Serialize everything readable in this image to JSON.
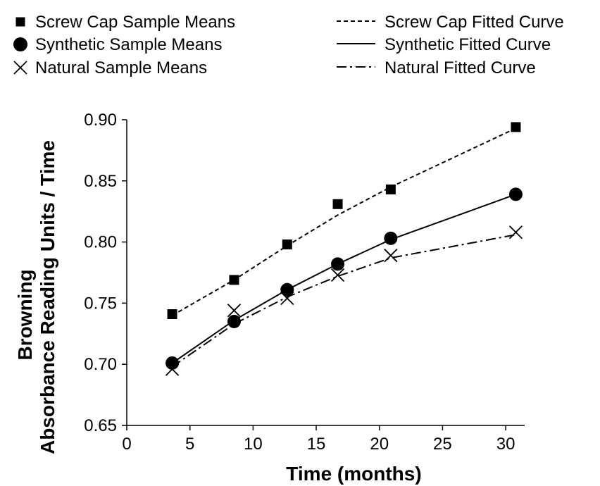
{
  "chart_data": {
    "type": "line",
    "title": "",
    "xlabel": "Time (months)",
    "ylabel_lines": [
      "Browning",
      "Absorbance Reading Units / Time"
    ],
    "xlim": [
      0,
      31.5
    ],
    "ylim": [
      0.65,
      0.9
    ],
    "x_ticks": [
      0,
      5,
      10,
      15,
      20,
      25,
      30
    ],
    "x_tick_labels": [
      "0",
      "5",
      "10",
      "15",
      "20",
      "25",
      "30"
    ],
    "y_ticks": [
      0.65,
      0.7,
      0.75,
      0.8,
      0.85,
      0.9
    ],
    "y_tick_labels": [
      "0.65",
      "0.70",
      "0.75",
      "0.80",
      "0.85",
      "0.90"
    ],
    "grid": false,
    "legend_position": "top",
    "legend": {
      "markers": [
        {
          "label": "Screw Cap Sample Means",
          "symbol": "square"
        },
        {
          "label": "Synthetic Sample Means",
          "symbol": "circle"
        },
        {
          "label": "Natural Sample Means",
          "symbol": "x"
        }
      ],
      "lines": [
        {
          "label": "Screw Cap Fitted Curve",
          "dash": "dashed"
        },
        {
          "label": "Synthetic Fitted Curve",
          "dash": "solid"
        },
        {
          "label": "Natural Fitted Curve",
          "dash": "dashdot"
        }
      ]
    },
    "series": [
      {
        "symbol": "square",
        "dash": "dashed",
        "color": "#000000",
        "points": [
          [
            3.6,
            0.741
          ],
          [
            8.5,
            0.769
          ],
          [
            12.7,
            0.798
          ],
          [
            16.7,
            0.831
          ],
          [
            20.9,
            0.843
          ],
          [
            30.8,
            0.894
          ]
        ],
        "fit": [
          [
            3.6,
            0.74
          ],
          [
            8.5,
            0.769
          ],
          [
            12.7,
            0.797
          ],
          [
            16.7,
            0.822
          ],
          [
            20.9,
            0.845
          ],
          [
            30.8,
            0.893
          ]
        ]
      },
      {
        "symbol": "circle",
        "dash": "solid",
        "color": "#000000",
        "points": [
          [
            3.6,
            0.701
          ],
          [
            8.5,
            0.735
          ],
          [
            12.7,
            0.761
          ],
          [
            16.7,
            0.782
          ],
          [
            20.9,
            0.803
          ],
          [
            30.8,
            0.839
          ]
        ],
        "fit": [
          [
            3.6,
            0.701
          ],
          [
            8.5,
            0.736
          ],
          [
            12.7,
            0.761
          ],
          [
            16.7,
            0.782
          ],
          [
            20.9,
            0.802
          ],
          [
            30.8,
            0.839
          ]
        ]
      },
      {
        "symbol": "x",
        "dash": "dashdot",
        "color": "#000000",
        "points": [
          [
            3.6,
            0.696
          ],
          [
            8.5,
            0.744
          ],
          [
            12.7,
            0.754
          ],
          [
            16.7,
            0.773
          ],
          [
            20.9,
            0.789
          ],
          [
            30.8,
            0.808
          ]
        ],
        "fit": [
          [
            3.6,
            0.698
          ],
          [
            8.5,
            0.733
          ],
          [
            12.7,
            0.755
          ],
          [
            16.7,
            0.772
          ],
          [
            20.9,
            0.787
          ],
          [
            30.8,
            0.806
          ]
        ]
      }
    ]
  }
}
